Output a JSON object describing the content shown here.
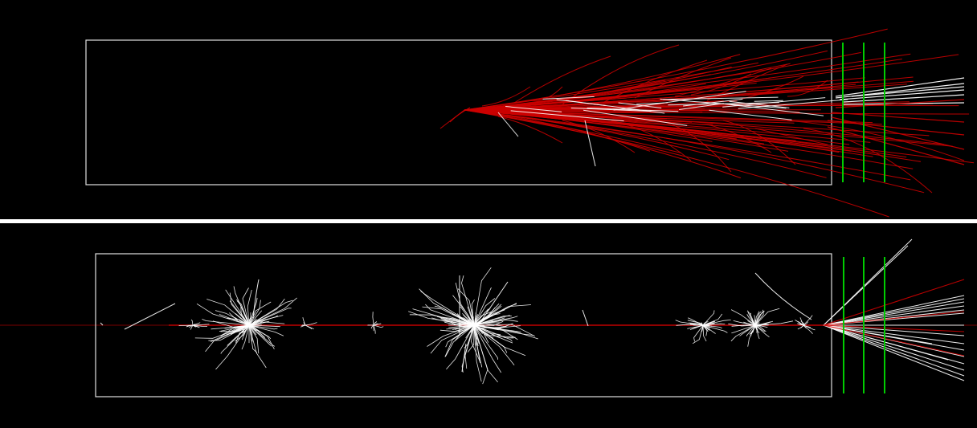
{
  "views": [
    {
      "id": "top-view",
      "style": "electromagnetic-shower",
      "track_color": "#cc0000",
      "secondary_color": "#ffffff"
    },
    {
      "id": "bottom-view",
      "style": "hadronic-interactions",
      "track_color": "#ffffff",
      "beam_color": "#cc0000"
    }
  ],
  "colors": {
    "background": "#000000",
    "separator": "#ffffff",
    "detector_outline": "#e0e0e0",
    "detector_planes": "#00cc00",
    "primary_track": "#cc0000",
    "secondary_track": "#ffffff"
  },
  "detector_planes_count": 3
}
